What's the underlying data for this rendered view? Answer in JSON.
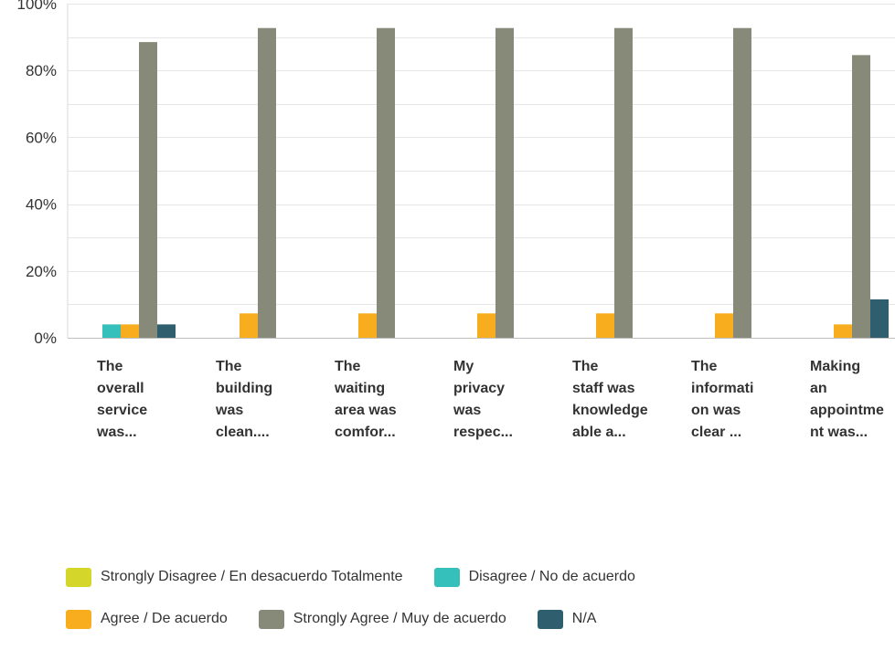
{
  "chart_data": {
    "type": "bar",
    "categories": [
      "The overall service was...",
      "The building was clean....",
      "The waiting area was comfor...",
      "My privacy was respec...",
      "The staff was knowledgeable a...",
      "The information was clear ...",
      "Making an appointment was..."
    ],
    "category_lines": [
      [
        "The",
        "overall",
        "service",
        "was..."
      ],
      [
        "The",
        "building",
        "was",
        "clean...."
      ],
      [
        "The",
        "waiting",
        "area was",
        "comfor..."
      ],
      [
        "My",
        "privacy",
        "was",
        "respec..."
      ],
      [
        "The",
        "staff was",
        "knowledge",
        "able a..."
      ],
      [
        "The",
        "informati",
        "on was",
        "clear ..."
      ],
      [
        "Making",
        "an",
        "appointme",
        "nt was..."
      ]
    ],
    "series": [
      {
        "name": "Strongly Disagree / En desacuerdo Totalmente",
        "color": "#d4d62a",
        "values": [
          0,
          0,
          0,
          0,
          0,
          0,
          0
        ]
      },
      {
        "name": "Disagree / No de acuerdo",
        "color": "#36c0bb",
        "values": [
          4,
          0,
          0,
          0,
          0,
          0,
          0
        ]
      },
      {
        "name": "Agree / De acuerdo",
        "color": "#f8ad1e",
        "values": [
          4,
          7.3,
          7.3,
          7.3,
          7.3,
          7.3,
          4
        ]
      },
      {
        "name": "Strongly Agree / Muy de acuerdo",
        "color": "#878a79",
        "values": [
          88.5,
          92.7,
          92.7,
          92.7,
          92.7,
          92.7,
          84.6
        ]
      },
      {
        "name": "N/A",
        "color": "#2f5f6e",
        "values": [
          4,
          0,
          0,
          0,
          0,
          0,
          11.5
        ]
      }
    ],
    "y_ticks": [
      "0%",
      "20%",
      "40%",
      "60%",
      "80%",
      "100%"
    ],
    "ylim": [
      0,
      100
    ],
    "grid": true,
    "legend_position": "bottom",
    "legend_rows": [
      [
        0,
        1
      ],
      [
        2,
        3,
        4
      ]
    ]
  }
}
